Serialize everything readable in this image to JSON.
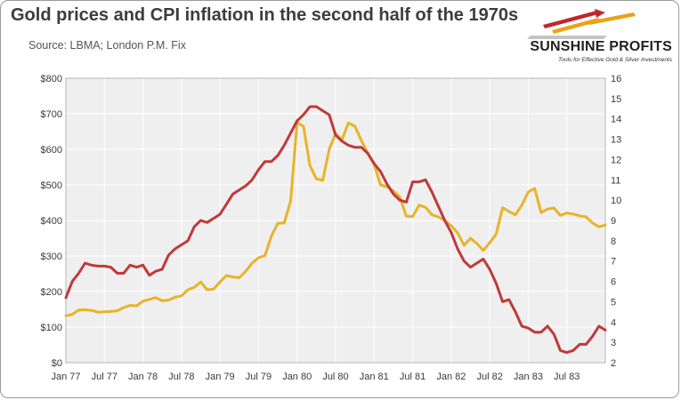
{
  "header": {
    "title": "Gold prices and CPI inflation in the second half of the 1970s",
    "subtitle": "Source: LBMA; London P.M. Fix"
  },
  "logo": {
    "name": "SUNSHINE PROFITS",
    "tagline": "Tools for Effective Gold & Silver Investments",
    "icon": "rising-arrows-logo",
    "colors": {
      "arrow_red": "#c0272d",
      "arrow_gold": "#e8a317"
    }
  },
  "chart_data": {
    "type": "line",
    "title": "",
    "xlabel": "",
    "ylabel": "",
    "y2label": "",
    "x_tick_labels": [
      "Jan 77",
      "Jul 77",
      "Jan 78",
      "Jul 78",
      "Jan 79",
      "Jul 79",
      "Jan 80",
      "Jul 80",
      "Jan 81",
      "Jul 81",
      "Jan 82",
      "Jul 82",
      "Jan 83",
      "Jul 83"
    ],
    "x_unit": "month index from Jan 1977",
    "y_left_ticks": [
      "$0",
      "$100",
      "$200",
      "$300",
      "$400",
      "$500",
      "$600",
      "$700",
      "$800"
    ],
    "y_right_ticks": [
      "2",
      "3",
      "4",
      "5",
      "6",
      "7",
      "8",
      "9",
      "10",
      "11",
      "12",
      "13",
      "14",
      "15",
      "16"
    ],
    "ylim_left": [
      0,
      800
    ],
    "ylim_right": [
      2,
      16
    ],
    "grid": true,
    "legend": "none",
    "plot_background": "#efefef",
    "series": [
      {
        "axis": "left",
        "color": "#e8b32a",
        "values": [
          132,
          136,
          148,
          149,
          147,
          142,
          143,
          144,
          146,
          155,
          161,
          160,
          173,
          178,
          183,
          174,
          176,
          184,
          188,
          205,
          212,
          227,
          205,
          207,
          227,
          245,
          241,
          239,
          257,
          280,
          295,
          301,
          356,
          392,
          393,
          455,
          675,
          665,
          555,
          517,
          513,
          600,
          644,
          627,
          674,
          665,
          625,
          590,
          557,
          500,
          495,
          483,
          466,
          412,
          411,
          443,
          437,
          416,
          410,
          400,
          385,
          365,
          330,
          350,
          335,
          316,
          337,
          362,
          436,
          425,
          416,
          443,
          480,
          490,
          422,
          432,
          435,
          414,
          421,
          418,
          413,
          410,
          393,
          382,
          387
        ]
      },
      {
        "axis": "right",
        "color": "#c0393b",
        "values": [
          5.2,
          6.0,
          6.4,
          6.9,
          6.8,
          6.75,
          6.75,
          6.7,
          6.4,
          6.4,
          6.8,
          6.7,
          6.8,
          6.3,
          6.5,
          6.6,
          7.3,
          7.6,
          7.8,
          8.0,
          8.7,
          9.0,
          8.9,
          9.1,
          9.3,
          9.8,
          10.3,
          10.5,
          10.7,
          11.0,
          11.5,
          11.9,
          11.9,
          12.2,
          12.7,
          13.3,
          13.9,
          14.2,
          14.6,
          14.6,
          14.4,
          14.2,
          13.2,
          12.9,
          12.7,
          12.6,
          12.6,
          12.3,
          11.8,
          11.4,
          10.8,
          10.3,
          10.0,
          9.9,
          10.9,
          10.9,
          11.0,
          10.4,
          9.7,
          9.0,
          8.4,
          7.6,
          7.0,
          6.7,
          6.9,
          7.1,
          6.6,
          5.9,
          5.0,
          5.1,
          4.5,
          3.8,
          3.7,
          3.5,
          3.5,
          3.8,
          3.4,
          2.6,
          2.5,
          2.6,
          2.9,
          2.9,
          3.3,
          3.8,
          3.6
        ]
      }
    ]
  }
}
